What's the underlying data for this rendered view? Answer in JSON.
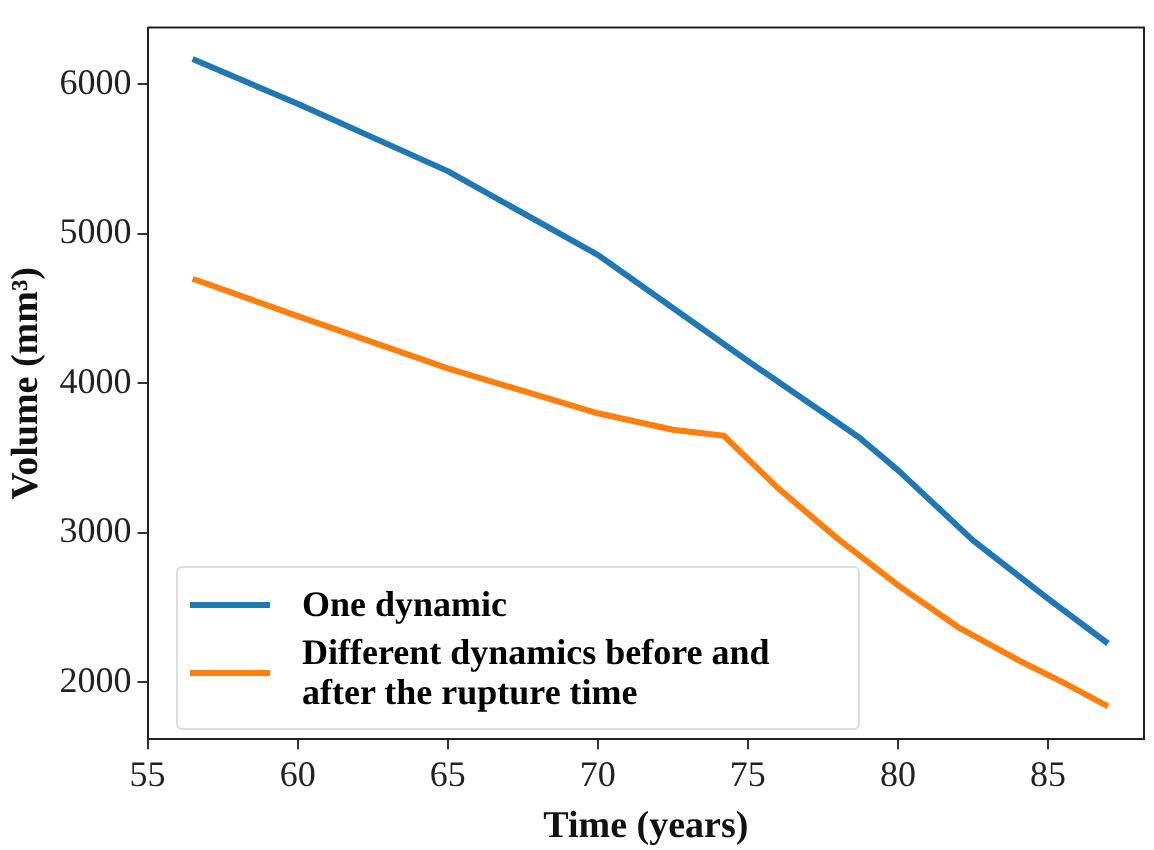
{
  "chart_data": {
    "type": "line",
    "xlabel": "Time (years)",
    "ylabel": "Volume (mm³)",
    "xlim": [
      55,
      88.2
    ],
    "xticks": [
      55,
      60,
      65,
      70,
      75,
      80,
      85
    ],
    "ylim": [
      1620,
      6380
    ],
    "yticks": [
      2000,
      3000,
      4000,
      5000,
      6000
    ],
    "grid": false,
    "legend": "bottom left",
    "marker": "none",
    "line_style": "solid",
    "series": [
      {
        "name": "One dynamic",
        "color": "#1f77b4",
        "x": [
          56.5,
          60,
          65,
          70,
          75,
          78.7,
          80,
          82.5,
          85,
          87
        ],
        "values": [
          6170,
          5870,
          5420,
          4860,
          4150,
          3640,
          3420,
          2950,
          2560,
          2260
        ]
      },
      {
        "name": "Different dynamics before and after the rupture time",
        "color": "#ff7f0e",
        "x": [
          56.5,
          60,
          65,
          70,
          72.5,
          74.2,
          76,
          78,
          80,
          82,
          84,
          85.5,
          87
        ],
        "values": [
          4700,
          4450,
          4100,
          3800,
          3690,
          3650,
          3300,
          2960,
          2650,
          2370,
          2150,
          2000,
          1840
        ]
      }
    ]
  }
}
